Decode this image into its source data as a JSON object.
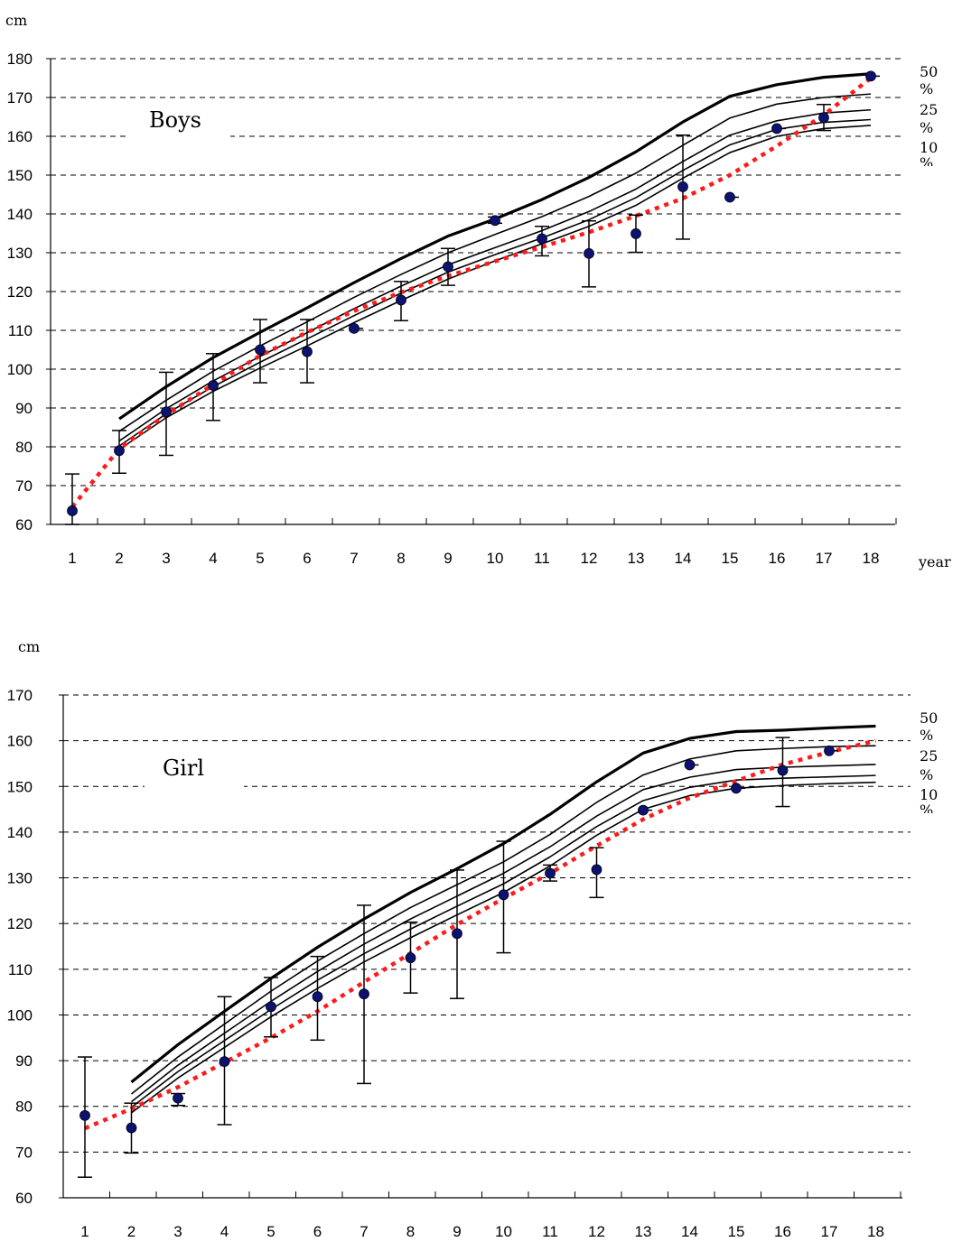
{
  "chart_data": [
    {
      "type": "scatter",
      "title": "Boys",
      "ylabel": "cm",
      "xlabel": "year",
      "ylim": [
        60,
        180
      ],
      "ytick_step": 10,
      "categories": [
        "1",
        "2",
        "3",
        "4",
        "5",
        "6",
        "7",
        "8",
        "9",
        "10",
        "11",
        "12",
        "13",
        "14",
        "15",
        "16",
        "17",
        "18"
      ],
      "grid": true,
      "percentile_labels": [
        "50",
        "%",
        "25",
        "%",
        "10",
        "%"
      ],
      "percentile_x": [
        2,
        3,
        4,
        5,
        6,
        7,
        8,
        9,
        10,
        11,
        12,
        13,
        14,
        15,
        16,
        17,
        18
      ],
      "percentile_curves": [
        {
          "values": [
            87.2,
            95.5,
            103,
            109.5,
            115.8,
            122.3,
            128.5,
            134.3,
            138.7,
            143.7,
            149.4,
            156,
            163.7,
            170.3,
            173.3,
            175.2,
            176.1
          ]
        },
        {
          "values": [
            84,
            92,
            99.5,
            106,
            112.2,
            118.5,
            124.4,
            130,
            134.7,
            139.3,
            144.5,
            150.5,
            157.7,
            164.7,
            168.3,
            170,
            170.9
          ]
        },
        {
          "values": [
            81.5,
            89.8,
            97,
            103.3,
            109.4,
            115.6,
            121.4,
            126.9,
            131.3,
            135.7,
            140.6,
            146.4,
            153.5,
            160.3,
            164,
            166,
            166.8
          ]
        },
        {
          "values": [
            80.2,
            88.5,
            95.5,
            101.8,
            107.8,
            113.8,
            119.6,
            125,
            129.5,
            133.8,
            138.5,
            144.2,
            151.2,
            157.8,
            161.8,
            163.6,
            164.3
          ]
        },
        {
          "values": [
            79.3,
            87.5,
            94.3,
            100.3,
            106,
            112,
            117.7,
            123.2,
            127.9,
            132.3,
            136.8,
            142.2,
            149.2,
            155.8,
            160,
            162,
            162.8
          ]
        }
      ],
      "series": [
        {
          "name": "mean",
          "x": [
            1,
            2,
            3,
            4,
            5,
            6,
            7,
            8,
            9,
            10,
            11,
            12,
            13,
            14,
            15,
            16,
            17,
            18
          ],
          "values": [
            63.5,
            79,
            89,
            95.8,
            105,
            104.5,
            110.5,
            117.8,
            126.4,
            138.3,
            133.6,
            129.8,
            134.9,
            147,
            144.3,
            162,
            164.8,
            175.5
          ],
          "error_low": [
            60,
            73.2,
            77.8,
            86.8,
            96.5,
            96.5,
            null,
            112.5,
            121.6,
            137.6,
            129.2,
            121.2,
            130.1,
            133.5,
            null,
            null,
            161.5,
            null
          ],
          "error_high": [
            73,
            84.2,
            99.2,
            104,
            112.8,
            112.8,
            null,
            122.6,
            131.1,
            139.2,
            136.8,
            138.2,
            139.7,
            160.3,
            null,
            null,
            168.2,
            null
          ]
        },
        {
          "name": "trend",
          "x": [
            1,
            2,
            3,
            4,
            5,
            6,
            7,
            8,
            9,
            10,
            11,
            12,
            13,
            14,
            15,
            16,
            17,
            18
          ],
          "values": [
            64.5,
            79.5,
            88.3,
            96,
            103.5,
            109.5,
            115,
            119.8,
            124,
            127.8,
            131.5,
            135.3,
            139.5,
            144,
            150,
            157.5,
            165.5,
            175
          ]
        }
      ]
    },
    {
      "type": "scatter",
      "title": "Girl",
      "ylabel": "cm",
      "xlabel": "",
      "ylim": [
        60,
        170
      ],
      "ytick_step": 10,
      "categories": [
        "1",
        "2",
        "3",
        "4",
        "5",
        "6",
        "7",
        "8",
        "9",
        "10",
        "11",
        "12",
        "13",
        "14",
        "15",
        "16",
        "17",
        "18"
      ],
      "grid": true,
      "percentile_labels": [
        "50",
        "%",
        "25",
        "%",
        "10",
        "%"
      ],
      "percentile_x": [
        2,
        3,
        4,
        5,
        6,
        7,
        8,
        9,
        10,
        11,
        12,
        13,
        14,
        15,
        16,
        17,
        18
      ],
      "percentile_curves": [
        {
          "values": [
            85.3,
            93.5,
            100.8,
            108,
            114.8,
            121,
            126.8,
            132,
            137.5,
            143.9,
            151,
            157.3,
            160.5,
            162,
            162.3,
            162.8,
            163.2
          ]
        },
        {
          "values": [
            82.7,
            90.8,
            98,
            105.2,
            111.8,
            117.8,
            123.5,
            128.5,
            133.5,
            139.5,
            146.5,
            152.5,
            156,
            157.8,
            158.3,
            158.7,
            158.9
          ]
        },
        {
          "values": [
            81,
            89,
            96,
            103,
            109.5,
            115.5,
            121,
            126,
            131,
            136.8,
            143.5,
            149.3,
            152,
            153.7,
            154.2,
            154.5,
            154.8
          ]
        },
        {
          "values": [
            79.8,
            87.6,
            94.4,
            101.2,
            107.6,
            113.4,
            118.8,
            123.8,
            128.7,
            134.6,
            141.2,
            146.9,
            149.8,
            151.4,
            151.8,
            152.1,
            152.4
          ]
        },
        {
          "values": [
            78.6,
            86.2,
            92.9,
            99.6,
            105.8,
            111.6,
            116.9,
            121.9,
            126.8,
            132.6,
            139.3,
            145,
            148,
            149.6,
            150.2,
            150.6,
            150.9
          ]
        }
      ],
      "series": [
        {
          "name": "mean",
          "x": [
            1,
            2,
            3,
            4,
            5,
            6,
            7,
            8,
            9,
            10,
            11,
            12,
            13,
            14,
            15,
            16,
            17,
            18
          ],
          "values": [
            78,
            75.3,
            81.8,
            89.8,
            101.8,
            104,
            104.6,
            112.5,
            117.8,
            126.3,
            131,
            131.8,
            144.8,
            154.7,
            149.6,
            153.5,
            157.8,
            null
          ],
          "error_low": [
            64.5,
            69.8,
            80.2,
            76,
            95.2,
            94.5,
            85,
            104.8,
            103.6,
            113.6,
            129.3,
            125.7,
            null,
            null,
            null,
            145.6,
            null,
            null
          ],
          "error_high": [
            90.8,
            80.7,
            82.8,
            104,
            108.2,
            112.8,
            124,
            120.3,
            131.7,
            138,
            132.8,
            136.6,
            null,
            null,
            null,
            160.7,
            null,
            null
          ]
        },
        {
          "name": "trend",
          "x": [
            1,
            2,
            3,
            4,
            5,
            6,
            7,
            8,
            9,
            10,
            11,
            12,
            13,
            14,
            15,
            16,
            17,
            18
          ],
          "values": [
            75.2,
            79.5,
            84.2,
            89.6,
            95,
            100.8,
            107.2,
            113.5,
            119.8,
            125.5,
            131,
            137,
            142.8,
            147.5,
            151.2,
            154.8,
            157.5,
            160
          ]
        }
      ]
    }
  ],
  "colors": {
    "point": "#0b1270",
    "trend": "#ff1a1a",
    "line": "#000000"
  }
}
